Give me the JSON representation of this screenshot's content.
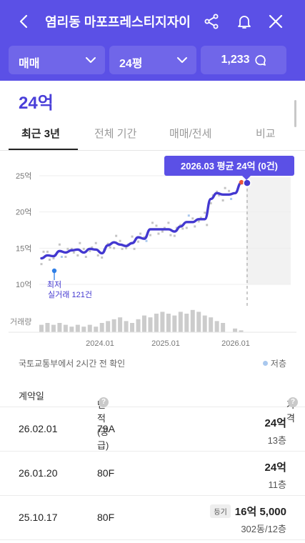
{
  "header": {
    "title": "염리동 마포프레스티지자이",
    "filters": {
      "trade_type": "매매",
      "size": "24평",
      "count": "1,233"
    },
    "colors": {
      "brand": "#5b50e6"
    }
  },
  "summary": {
    "price": "24억"
  },
  "tabs": [
    {
      "label": "최근 3년"
    },
    {
      "label": "전체 기간"
    },
    {
      "label": "매매/전세"
    },
    {
      "label": "비교"
    }
  ],
  "chart_data": {
    "type": "line",
    "y_ticks": [
      "25억",
      "20억",
      "15억",
      "10억"
    ],
    "ylim": [
      10,
      25
    ],
    "x_ticks": [
      "2024.01",
      "2025.01",
      "2026.01"
    ],
    "tooltip": "2026.03 평균 24억 (0건)",
    "min_label": "최저",
    "trades_label": "실거래 121건",
    "volume_label": "거래량",
    "series": [
      {
        "values": [
          13.6,
          14.0,
          13.9,
          14.6,
          14.4,
          14.7,
          14.8,
          14.4,
          14.9,
          14.8,
          14.3,
          15.4,
          15.8,
          15.5,
          15.3,
          15.7,
          16.5,
          16.3,
          17.6,
          17.6,
          17.6,
          17.6,
          17.3,
          18.0,
          18.6,
          18.6,
          19.0,
          19.0,
          21.8,
          22.6,
          22.4,
          22.4,
          22.6,
          24.0,
          24.0
        ],
        "color": "#4338d0"
      }
    ],
    "volumes": [
      4,
      5,
      4,
      5,
      4,
      3,
      4,
      3,
      4,
      3,
      5,
      6,
      7,
      8,
      6,
      5,
      7,
      9,
      8,
      10,
      11,
      10,
      9,
      11,
      10,
      12,
      11,
      9,
      8,
      6,
      5,
      0,
      2,
      1,
      0
    ]
  },
  "updated": "국토교통부에서 2시간 전 확인",
  "legend_low": "저층",
  "table": {
    "headers": {
      "date": "계약일",
      "area": "면적(공급)",
      "price": "가격"
    },
    "rows": [
      {
        "date": "26.02.01",
        "area": "79A",
        "amount": "24억",
        "floor": "13층",
        "badge": ""
      },
      {
        "date": "26.01.20",
        "area": "80F",
        "amount": "24억",
        "floor": "11층",
        "badge": ""
      },
      {
        "date": "25.10.17",
        "area": "80F",
        "amount": "16억 5,000",
        "floor": "302동/12층",
        "badge": "등기"
      }
    ]
  }
}
